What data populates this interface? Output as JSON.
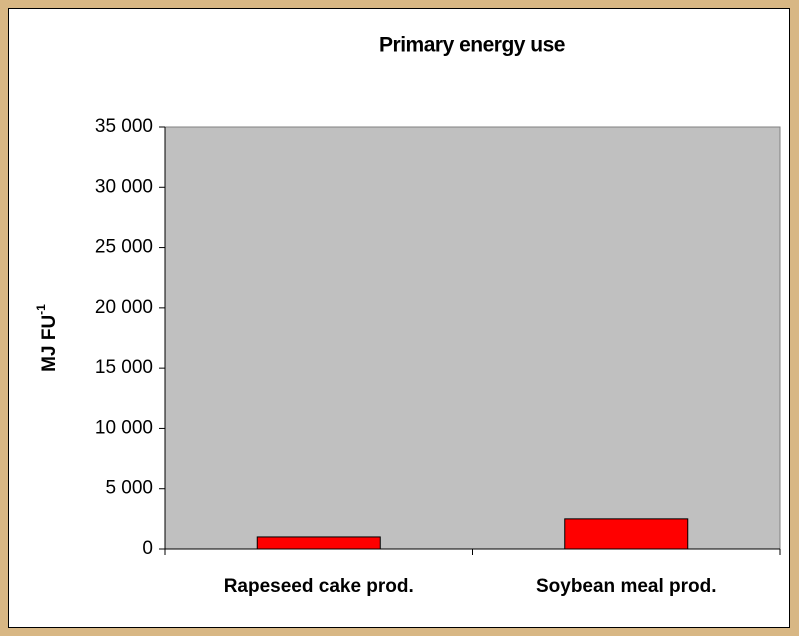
{
  "chart_data": {
    "type": "bar",
    "title": "Primary energy use",
    "y_label": "MJ FU",
    "y_label_superscript": "-1",
    "categories": [
      "Rapeseed cake prod.",
      "Soybean meal prod."
    ],
    "values": [
      1000,
      2500
    ],
    "color": "#ff0000",
    "ylim": [
      0,
      35000
    ],
    "yticks": [
      0,
      {
        "value": 5000,
        "label": "5 000"
      },
      {
        "value": 10000,
        "label": "10 000"
      },
      {
        "value": 15000,
        "label": "15 000"
      },
      {
        "value": 20000,
        "label": "20 000"
      },
      {
        "value": 25000,
        "label": "25 000"
      },
      {
        "value": 30000,
        "label": "30 000"
      },
      {
        "value": 35000,
        "label": "35 000"
      }
    ],
    "grid": false,
    "plot_background": "#c0c0c0"
  }
}
